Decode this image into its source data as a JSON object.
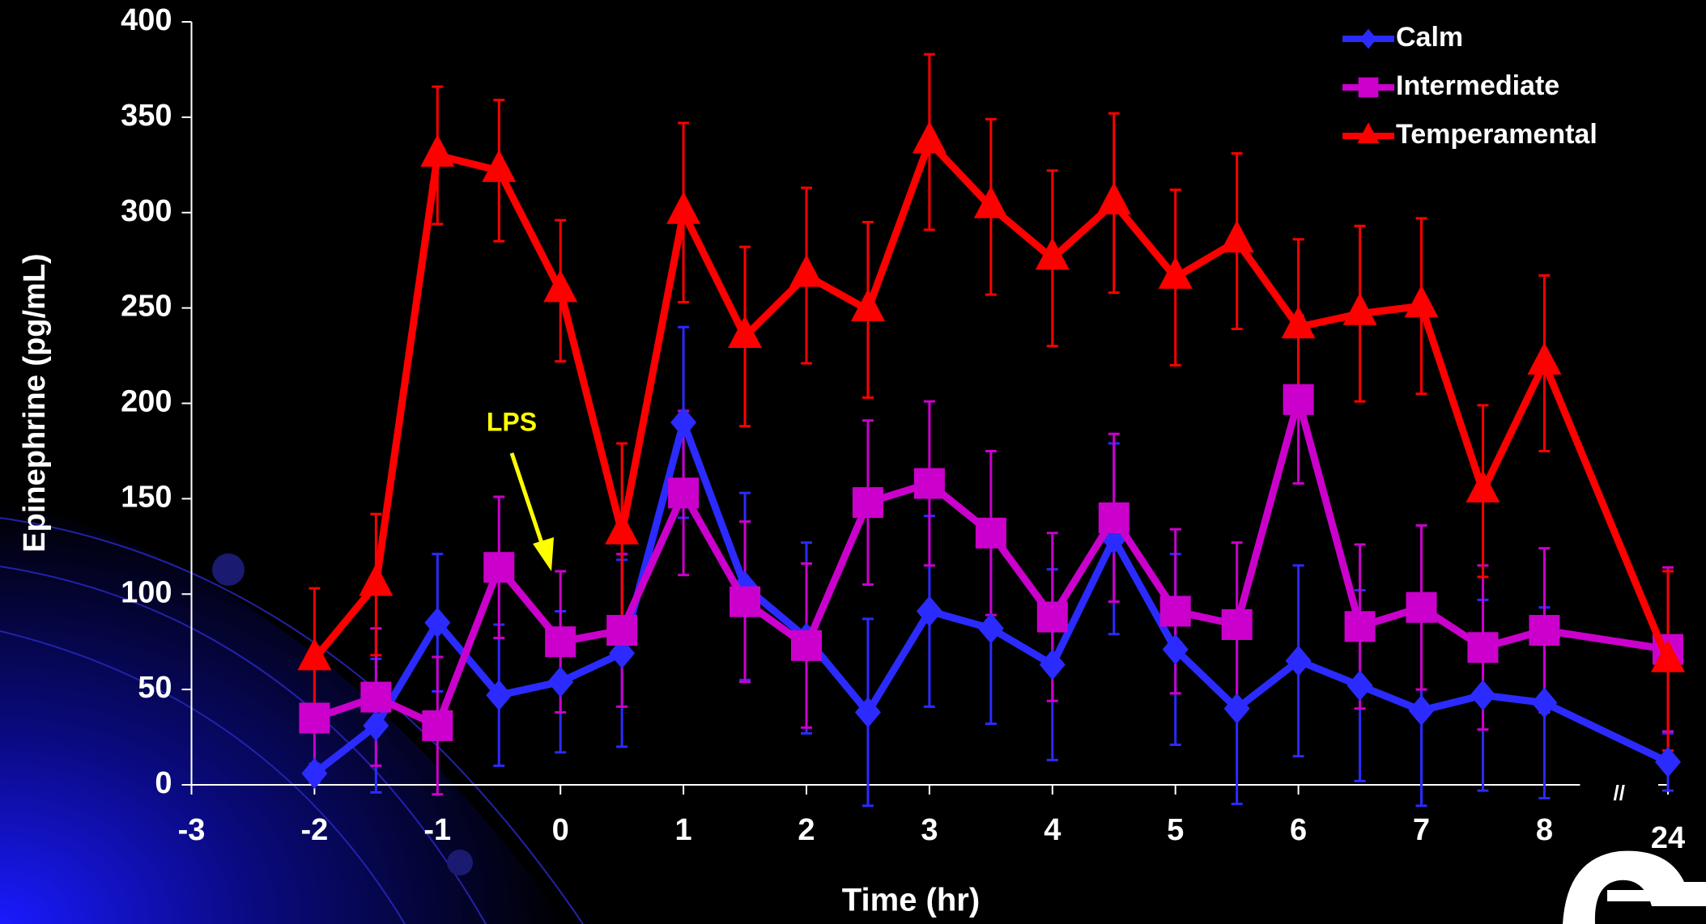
{
  "chart_data": {
    "type": "line",
    "x_label": "Time (hr)",
    "y_label": "Epinephrine (pg/mL)",
    "x": [
      -2,
      -1.5,
      -1,
      -0.5,
      0,
      0.5,
      1,
      1.5,
      2,
      2.5,
      3,
      3.5,
      4,
      4.5,
      5,
      5.5,
      6,
      6.5,
      7,
      7.5,
      8,
      24
    ],
    "series": [
      {
        "name": "Calm",
        "color": "#2b2bff",
        "marker": "diamond",
        "values": [
          6,
          31,
          85,
          47,
          54,
          69,
          190,
          104,
          77,
          38,
          91,
          82,
          63,
          129,
          71,
          40,
          65,
          52,
          39,
          47,
          43,
          12
        ],
        "errors": [
          5,
          35,
          36,
          37,
          37,
          49,
          50,
          49,
          50,
          49,
          50,
          50,
          50,
          50,
          50,
          50,
          50,
          50,
          50,
          50,
          50,
          15
        ]
      },
      {
        "name": "Intermediate",
        "color": "#cc00cc",
        "marker": "square",
        "values": [
          35,
          46,
          31,
          114,
          75,
          81,
          153,
          96,
          73,
          148,
          158,
          132,
          88,
          140,
          91,
          84,
          202,
          83,
          93,
          72,
          81,
          71
        ],
        "errors": [
          30,
          36,
          36,
          37,
          37,
          40,
          43,
          42,
          43,
          43,
          43,
          43,
          44,
          44,
          43,
          43,
          44,
          43,
          43,
          43,
          43,
          43
        ]
      },
      {
        "name": "Temperamental",
        "color": "#ff0000",
        "marker": "triangle",
        "values": [
          66,
          105,
          330,
          322,
          259,
          132,
          300,
          235,
          267,
          249,
          337,
          303,
          276,
          305,
          266,
          285,
          240,
          247,
          251,
          154,
          221,
          65
        ],
        "errors": [
          37,
          37,
          36,
          37,
          37,
          47,
          47,
          47,
          46,
          46,
          46,
          46,
          46,
          47,
          46,
          46,
          46,
          46,
          46,
          45,
          46,
          47
        ]
      }
    ],
    "xlim": [
      -3,
      24
    ],
    "xticks": [
      -3,
      -2,
      -1,
      0,
      1,
      2,
      3,
      4,
      5,
      6,
      7,
      8,
      24
    ],
    "ylim": [
      0,
      400
    ],
    "yticks": [
      0,
      50,
      100,
      150,
      200,
      250,
      300,
      350,
      400
    ],
    "axis_break_label": "//",
    "annotation": {
      "text": "LPS",
      "color": "#ffff00"
    },
    "legend": "top-right"
  }
}
